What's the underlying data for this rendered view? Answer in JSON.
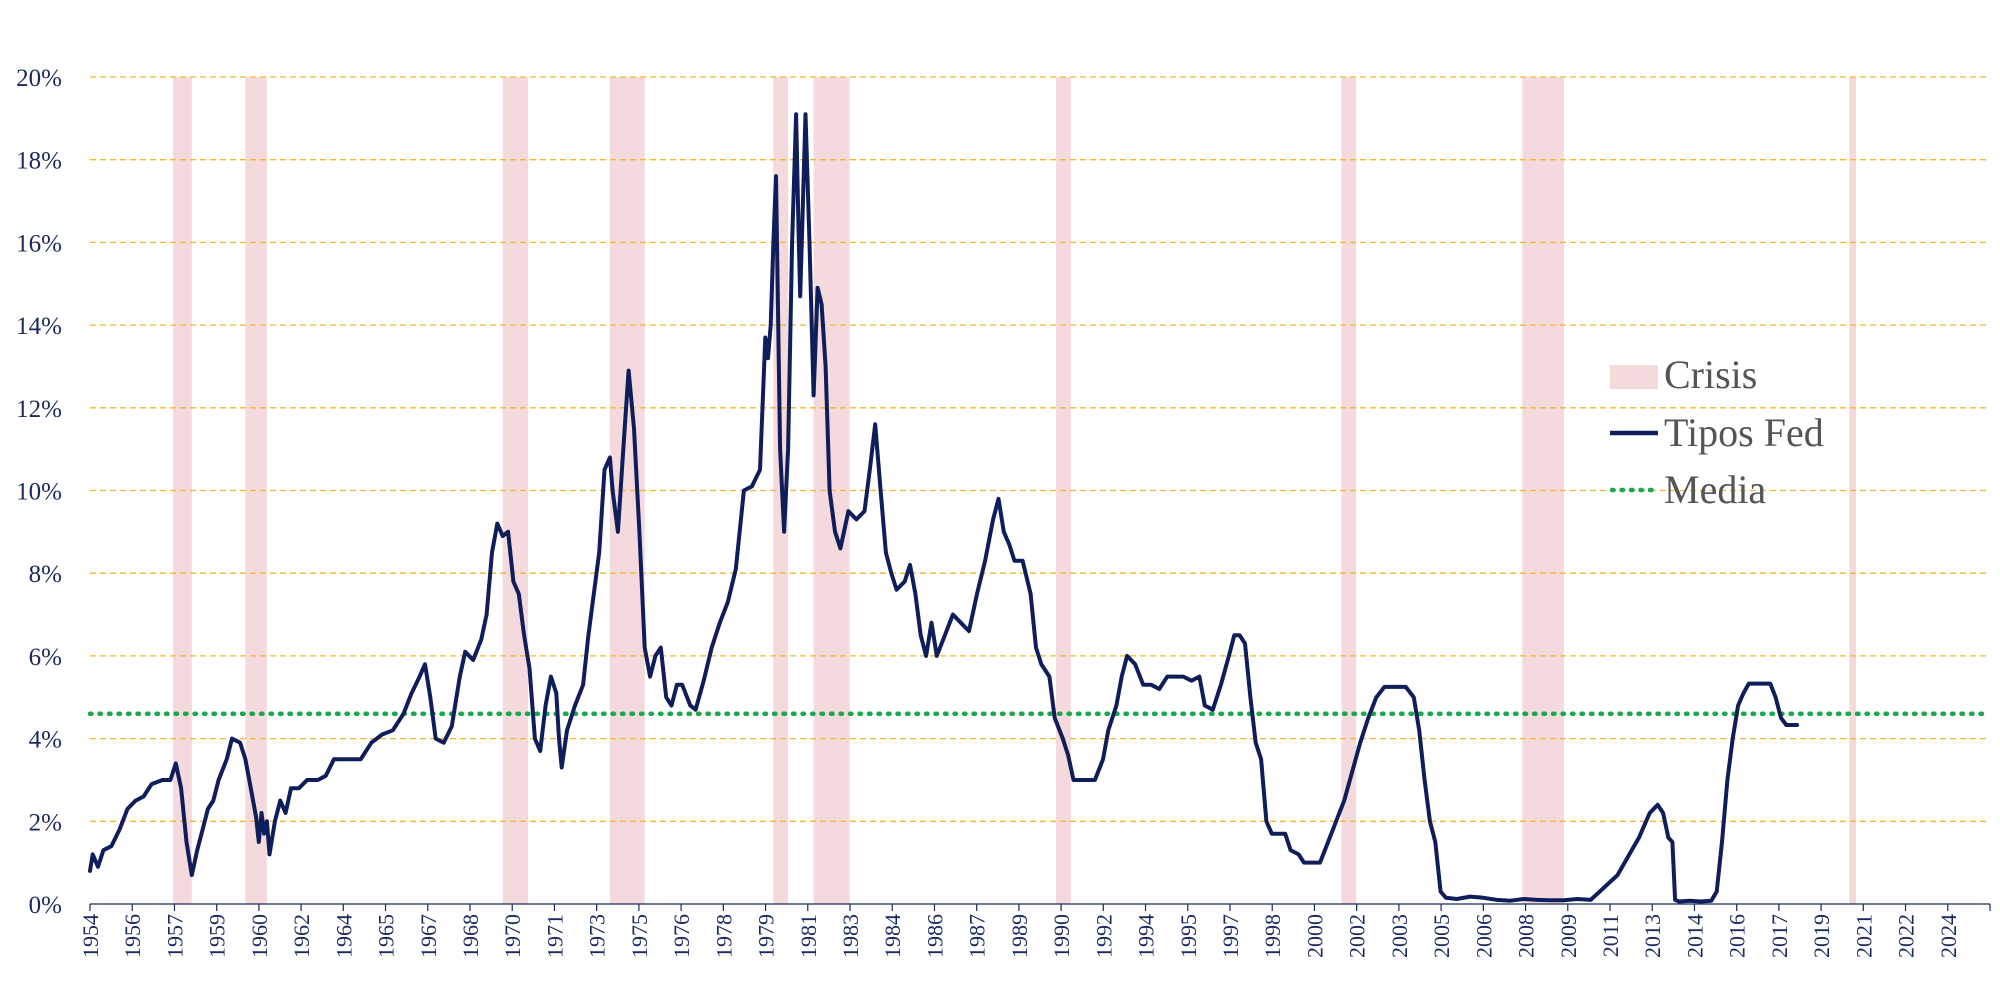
{
  "chart_data": {
    "type": "line",
    "title": "",
    "xlabel": "",
    "ylabel": "",
    "x_range": [
      1954.5,
      2025.4
    ],
    "ylim": [
      0,
      20
    ],
    "y_ticks": [
      0,
      2,
      4,
      6,
      8,
      10,
      12,
      14,
      16,
      18,
      20
    ],
    "y_tick_format": "{v}%",
    "x_tick_labels": [
      "1954",
      "1956",
      "1957",
      "1959",
      "1960",
      "1962",
      "1964",
      "1965",
      "1967",
      "1968",
      "1970",
      "1971",
      "1973",
      "1975",
      "1976",
      "1978",
      "1979",
      "1981",
      "1983",
      "1984",
      "1986",
      "1987",
      "1989",
      "1990",
      "1992",
      "1994",
      "1995",
      "1997",
      "1998",
      "2000",
      "2002",
      "2003",
      "2005",
      "2006",
      "2008",
      "2009",
      "2011",
      "2013",
      "2014",
      "2016",
      "2017",
      "2019",
      "2021",
      "2022",
      "2024"
    ],
    "grid": "horizontal dashed",
    "legend_position": "right",
    "colors": {
      "crisis": "#f4dadc",
      "line": "#0f1e5a",
      "mean": "#1aa84a",
      "grid": "#f1b82d",
      "axis": "#1a2a5e"
    },
    "legend": [
      {
        "key": "crisis",
        "label": "Crisis",
        "symbol": "box"
      },
      {
        "key": "line",
        "label": "Tipos Fed",
        "symbol": "line"
      },
      {
        "key": "mean",
        "label": "Media",
        "symbol": "dotted"
      }
    ],
    "crisis_periods": [
      [
        1957.6,
        1958.3
      ],
      [
        1960.3,
        1961.1
      ],
      [
        1969.9,
        1970.85
      ],
      [
        1973.9,
        1975.2
      ],
      [
        1980.0,
        1980.55
      ],
      [
        1981.5,
        1982.85
      ],
      [
        1990.55,
        1991.1
      ],
      [
        2001.2,
        2001.75
      ],
      [
        2007.95,
        2009.5
      ],
      [
        2020.15,
        2020.4
      ]
    ],
    "mean_value": 4.6,
    "series": [
      {
        "name": "Tipos Fed",
        "points": [
          [
            1954.5,
            0.8
          ],
          [
            1954.6,
            1.2
          ],
          [
            1954.8,
            0.9
          ],
          [
            1955.0,
            1.3
          ],
          [
            1955.3,
            1.4
          ],
          [
            1955.6,
            1.8
          ],
          [
            1955.9,
            2.3
          ],
          [
            1956.2,
            2.5
          ],
          [
            1956.5,
            2.6
          ],
          [
            1956.8,
            2.9
          ],
          [
            1957.2,
            3.0
          ],
          [
            1957.5,
            3.0
          ],
          [
            1957.7,
            3.4
          ],
          [
            1957.9,
            2.8
          ],
          [
            1958.1,
            1.5
          ],
          [
            1958.3,
            0.7
          ],
          [
            1958.5,
            1.3
          ],
          [
            1958.7,
            1.8
          ],
          [
            1958.9,
            2.3
          ],
          [
            1959.1,
            2.5
          ],
          [
            1959.3,
            3.0
          ],
          [
            1959.6,
            3.5
          ],
          [
            1959.8,
            4.0
          ],
          [
            1960.1,
            3.9
          ],
          [
            1960.3,
            3.5
          ],
          [
            1960.5,
            2.8
          ],
          [
            1960.7,
            2.1
          ],
          [
            1960.8,
            1.5
          ],
          [
            1960.9,
            2.2
          ],
          [
            1961.0,
            1.7
          ],
          [
            1961.1,
            2.0
          ],
          [
            1961.2,
            1.2
          ],
          [
            1961.4,
            2.0
          ],
          [
            1961.6,
            2.5
          ],
          [
            1961.8,
            2.2
          ],
          [
            1962.0,
            2.8
          ],
          [
            1962.3,
            2.8
          ],
          [
            1962.6,
            3.0
          ],
          [
            1963.0,
            3.0
          ],
          [
            1963.3,
            3.1
          ],
          [
            1963.6,
            3.5
          ],
          [
            1964.0,
            3.5
          ],
          [
            1964.3,
            3.5
          ],
          [
            1964.6,
            3.5
          ],
          [
            1965.0,
            3.9
          ],
          [
            1965.4,
            4.1
          ],
          [
            1965.8,
            4.2
          ],
          [
            1966.2,
            4.6
          ],
          [
            1966.5,
            5.1
          ],
          [
            1966.8,
            5.5
          ],
          [
            1967.0,
            5.8
          ],
          [
            1967.2,
            5.0
          ],
          [
            1967.4,
            4.0
          ],
          [
            1967.7,
            3.9
          ],
          [
            1968.0,
            4.3
          ],
          [
            1968.3,
            5.5
          ],
          [
            1968.5,
            6.1
          ],
          [
            1968.8,
            5.9
          ],
          [
            1969.1,
            6.4
          ],
          [
            1969.3,
            7.0
          ],
          [
            1969.5,
            8.5
          ],
          [
            1969.7,
            9.2
          ],
          [
            1969.9,
            8.9
          ],
          [
            1970.1,
            9.0
          ],
          [
            1970.3,
            7.8
          ],
          [
            1970.5,
            7.5
          ],
          [
            1970.7,
            6.5
          ],
          [
            1970.9,
            5.7
          ],
          [
            1971.1,
            4.0
          ],
          [
            1971.3,
            3.7
          ],
          [
            1971.5,
            4.8
          ],
          [
            1971.7,
            5.5
          ],
          [
            1971.9,
            5.1
          ],
          [
            1972.0,
            4.0
          ],
          [
            1972.1,
            3.3
          ],
          [
            1972.3,
            4.2
          ],
          [
            1972.6,
            4.8
          ],
          [
            1972.9,
            5.3
          ],
          [
            1973.1,
            6.5
          ],
          [
            1973.3,
            7.5
          ],
          [
            1973.5,
            8.5
          ],
          [
            1973.7,
            10.5
          ],
          [
            1973.9,
            10.8
          ],
          [
            1974.0,
            10.0
          ],
          [
            1974.2,
            9.0
          ],
          [
            1974.4,
            11.0
          ],
          [
            1974.6,
            12.9
          ],
          [
            1974.8,
            11.5
          ],
          [
            1975.0,
            9.0
          ],
          [
            1975.2,
            6.2
          ],
          [
            1975.4,
            5.5
          ],
          [
            1975.6,
            6.0
          ],
          [
            1975.8,
            6.2
          ],
          [
            1976.0,
            5.0
          ],
          [
            1976.2,
            4.8
          ],
          [
            1976.4,
            5.3
          ],
          [
            1976.6,
            5.3
          ],
          [
            1976.9,
            4.8
          ],
          [
            1977.1,
            4.7
          ],
          [
            1977.4,
            5.4
          ],
          [
            1977.7,
            6.2
          ],
          [
            1978.0,
            6.8
          ],
          [
            1978.3,
            7.3
          ],
          [
            1978.6,
            8.1
          ],
          [
            1978.9,
            10.0
          ],
          [
            1979.2,
            10.1
          ],
          [
            1979.5,
            10.5
          ],
          [
            1979.7,
            13.7
          ],
          [
            1979.8,
            13.2
          ],
          [
            1979.9,
            14.0
          ],
          [
            1980.0,
            16.0
          ],
          [
            1980.1,
            17.6
          ],
          [
            1980.25,
            11.0
          ],
          [
            1980.4,
            9.0
          ],
          [
            1980.55,
            11.0
          ],
          [
            1980.7,
            16.0
          ],
          [
            1980.85,
            19.1
          ],
          [
            1980.95,
            16.0
          ],
          [
            1981.0,
            14.7
          ],
          [
            1981.2,
            19.1
          ],
          [
            1981.35,
            16.0
          ],
          [
            1981.5,
            12.3
          ],
          [
            1981.65,
            14.9
          ],
          [
            1981.8,
            14.5
          ],
          [
            1981.95,
            13.0
          ],
          [
            1982.1,
            10.0
          ],
          [
            1982.3,
            9.0
          ],
          [
            1982.5,
            8.6
          ],
          [
            1982.8,
            9.5
          ],
          [
            1983.1,
            9.3
          ],
          [
            1983.4,
            9.5
          ],
          [
            1983.6,
            10.5
          ],
          [
            1983.8,
            11.6
          ],
          [
            1984.0,
            10.0
          ],
          [
            1984.2,
            8.5
          ],
          [
            1984.4,
            8.0
          ],
          [
            1984.6,
            7.6
          ],
          [
            1984.9,
            7.8
          ],
          [
            1985.1,
            8.2
          ],
          [
            1985.3,
            7.5
          ],
          [
            1985.5,
            6.5
          ],
          [
            1985.7,
            6.0
          ],
          [
            1985.9,
            6.8
          ],
          [
            1986.1,
            6.0
          ],
          [
            1986.4,
            6.5
          ],
          [
            1986.7,
            7.0
          ],
          [
            1987.0,
            6.8
          ],
          [
            1987.3,
            6.6
          ],
          [
            1987.6,
            7.5
          ],
          [
            1987.9,
            8.3
          ],
          [
            1988.2,
            9.3
          ],
          [
            1988.4,
            9.8
          ],
          [
            1988.6,
            9.0
          ],
          [
            1988.8,
            8.7
          ],
          [
            1989.0,
            8.3
          ],
          [
            1989.3,
            8.3
          ],
          [
            1989.6,
            7.5
          ],
          [
            1989.8,
            6.2
          ],
          [
            1990.0,
            5.8
          ],
          [
            1990.3,
            5.5
          ],
          [
            1990.5,
            4.5
          ],
          [
            1990.8,
            4.0
          ],
          [
            1991.0,
            3.6
          ],
          [
            1991.2,
            3.0
          ],
          [
            1991.5,
            3.0
          ],
          [
            1991.8,
            3.0
          ],
          [
            1992.0,
            3.0
          ],
          [
            1992.3,
            3.5
          ],
          [
            1992.5,
            4.2
          ],
          [
            1992.8,
            4.8
          ],
          [
            1993.0,
            5.5
          ],
          [
            1993.2,
            6.0
          ],
          [
            1993.5,
            5.8
          ],
          [
            1993.8,
            5.3
          ],
          [
            1994.1,
            5.3
          ],
          [
            1994.4,
            5.2
          ],
          [
            1994.7,
            5.5
          ],
          [
            1995.0,
            5.5
          ],
          [
            1995.3,
            5.5
          ],
          [
            1995.6,
            5.4
          ],
          [
            1995.9,
            5.5
          ],
          [
            1996.1,
            4.8
          ],
          [
            1996.4,
            4.7
          ],
          [
            1996.7,
            5.3
          ],
          [
            1997.0,
            6.0
          ],
          [
            1997.2,
            6.5
          ],
          [
            1997.4,
            6.5
          ],
          [
            1997.6,
            6.3
          ],
          [
            1997.8,
            5.0
          ],
          [
            1998.0,
            3.9
          ],
          [
            1998.2,
            3.5
          ],
          [
            1998.4,
            2.0
          ],
          [
            1998.6,
            1.7
          ],
          [
            1998.8,
            1.7
          ],
          [
            1999.1,
            1.7
          ],
          [
            1999.3,
            1.3
          ],
          [
            1999.6,
            1.2
          ],
          [
            1999.8,
            1.0
          ],
          [
            2000.1,
            1.0
          ],
          [
            2000.4,
            1.0
          ],
          [
            2000.7,
            1.5
          ],
          [
            2001.0,
            2.0
          ],
          [
            2001.3,
            2.5
          ],
          [
            2001.6,
            3.2
          ],
          [
            2001.9,
            3.9
          ],
          [
            2002.2,
            4.5
          ],
          [
            2002.5,
            5.0
          ],
          [
            2002.8,
            5.25
          ],
          [
            2003.2,
            5.25
          ],
          [
            2003.6,
            5.25
          ],
          [
            2003.9,
            5.0
          ],
          [
            2004.1,
            4.2
          ],
          [
            2004.3,
            3.0
          ],
          [
            2004.5,
            2.0
          ],
          [
            2004.7,
            1.5
          ],
          [
            2004.9,
            0.3
          ],
          [
            2005.1,
            0.15
          ],
          [
            2005.5,
            0.12
          ],
          [
            2006.0,
            0.18
          ],
          [
            2006.5,
            0.15
          ],
          [
            2007.0,
            0.1
          ],
          [
            2007.5,
            0.08
          ],
          [
            2008.0,
            0.12
          ],
          [
            2008.5,
            0.1
          ],
          [
            2009.0,
            0.09
          ],
          [
            2009.5,
            0.09
          ],
          [
            2010.0,
            0.12
          ],
          [
            2010.5,
            0.1
          ],
          [
            2011.0,
            0.4
          ],
          [
            2011.5,
            0.7
          ],
          [
            2011.9,
            1.15
          ],
          [
            2012.3,
            1.6
          ],
          [
            2012.7,
            2.2
          ],
          [
            2013.0,
            2.4
          ],
          [
            2013.2,
            2.2
          ],
          [
            2013.4,
            1.6
          ],
          [
            2013.55,
            1.5
          ],
          [
            2013.65,
            0.1
          ],
          [
            2013.8,
            0.06
          ],
          [
            2014.2,
            0.08
          ],
          [
            2014.6,
            0.06
          ],
          [
            2015.0,
            0.08
          ],
          [
            2015.2,
            0.3
          ],
          [
            2015.4,
            1.5
          ],
          [
            2015.6,
            3.0
          ],
          [
            2015.8,
            4.0
          ],
          [
            2016.0,
            4.8
          ],
          [
            2016.2,
            5.1
          ],
          [
            2016.4,
            5.33
          ],
          [
            2016.8,
            5.33
          ],
          [
            2017.2,
            5.33
          ],
          [
            2017.4,
            5.0
          ],
          [
            2017.6,
            4.5
          ],
          [
            2017.8,
            4.33
          ],
          [
            2018.2,
            4.33
          ]
        ]
      }
    ]
  }
}
